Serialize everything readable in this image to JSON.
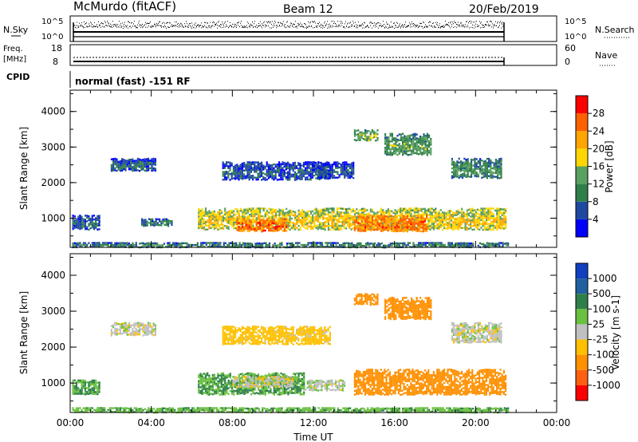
{
  "header": {
    "station": "McMurdo (fitACF)",
    "beam": "Beam 12",
    "date": "20/Feb/2019"
  },
  "strips": {
    "nsky": {
      "label": "N.Sky",
      "ticks": [
        "10^5",
        "10^0"
      ],
      "right_label": "N.Search",
      "right_ticks": [
        "10^5",
        "10^0"
      ]
    },
    "freq": {
      "label_line1": "Freq.",
      "label_line2": "[MHz]",
      "ticks": [
        "18",
        "8"
      ],
      "right_label": "Nave",
      "right_ticks": [
        "60",
        "0"
      ]
    },
    "cpid": {
      "label": "CPID",
      "value": "normal (fast) -151 RF"
    }
  },
  "colors": {
    "power_scale": [
      "#0000ff",
      "#1f48a0",
      "#2f7f4a",
      "#5aa060",
      "#ffd700",
      "#ffa500",
      "#ff6000",
      "#ff0000"
    ],
    "velocity_scale": [
      "#1040c0",
      "#2060a0",
      "#2f7f4a",
      "#6ac040",
      "#c0c0c0",
      "#ffc000",
      "#ff9000",
      "#ff6010",
      "#ff0000"
    ]
  },
  "chart_data": [
    {
      "type": "heatmap",
      "panel": "power",
      "ylabel": "Slant Range [km]",
      "xlabel": "",
      "ylim": [
        180,
        4600
      ],
      "xlim_hours": [
        0,
        24
      ],
      "yticks": [
        "1000",
        "2000",
        "3000",
        "4000"
      ],
      "colorbar": {
        "label": "Power [dB]",
        "ticks": [
          "4",
          "8",
          "12",
          "16",
          "20",
          "24",
          "28"
        ],
        "range": [
          0,
          32
        ]
      },
      "regions": [
        {
          "t0": 0.1,
          "t1": 21.6,
          "r0": 200,
          "r1": 330,
          "level": 0.32
        },
        {
          "t0": 0.1,
          "t1": 1.4,
          "r0": 700,
          "r1": 1100,
          "level": 0.22
        },
        {
          "t0": 3.5,
          "t1": 5.0,
          "r0": 800,
          "r1": 1000,
          "level": 0.28
        },
        {
          "t0": 6.3,
          "t1": 21.5,
          "r0": 700,
          "r1": 1300,
          "level": 0.62
        },
        {
          "t0": 8.2,
          "t1": 10.7,
          "r0": 650,
          "r1": 1000,
          "level": 0.9
        },
        {
          "t0": 14.0,
          "t1": 17.6,
          "r0": 650,
          "r1": 1100,
          "level": 0.85
        },
        {
          "t0": 2.0,
          "t1": 4.2,
          "r0": 2350,
          "r1": 2700,
          "level": 0.22
        },
        {
          "t0": 7.5,
          "t1": 12.8,
          "r0": 2100,
          "r1": 2600,
          "level": 0.2
        },
        {
          "t0": 12.2,
          "t1": 14.0,
          "r0": 2150,
          "r1": 2600,
          "level": 0.18
        },
        {
          "t0": 18.8,
          "t1": 21.3,
          "r0": 2150,
          "r1": 2700,
          "level": 0.35
        },
        {
          "t0": 14.0,
          "t1": 15.2,
          "r0": 3200,
          "r1": 3500,
          "level": 0.48
        },
        {
          "t0": 15.5,
          "t1": 17.8,
          "r0": 2800,
          "r1": 3400,
          "level": 0.4
        }
      ]
    },
    {
      "type": "heatmap",
      "panel": "velocity",
      "ylabel": "Slant Range [km]",
      "xlabel": "Time UT",
      "ylim": [
        180,
        4600
      ],
      "xlim_hours": [
        0,
        24
      ],
      "xticks": [
        "00:00",
        "04:00",
        "08:00",
        "12:00",
        "16:00",
        "20:00",
        "00:00"
      ],
      "yticks": [
        "1000",
        "2000",
        "3000",
        "4000"
      ],
      "colorbar": {
        "label": "Velocity [m s-1]",
        "ticks": [
          "1000",
          "500",
          "100",
          "25",
          "-25",
          "-100",
          "-500",
          "-1000"
        ]
      },
      "regions": [
        {
          "t0": 0.1,
          "t1": 21.6,
          "r0": 200,
          "r1": 330,
          "vel": 80
        },
        {
          "t0": 0.1,
          "t1": 1.4,
          "r0": 700,
          "r1": 1100,
          "vel": 100
        },
        {
          "t0": 6.3,
          "t1": 11.5,
          "r0": 700,
          "r1": 1300,
          "vel": 100
        },
        {
          "t0": 8.0,
          "t1": 11.0,
          "r0": 900,
          "r1": 1200,
          "vel": 0
        },
        {
          "t0": 11.5,
          "t1": 13.5,
          "r0": 800,
          "r1": 1100,
          "vel": 10
        },
        {
          "t0": 14.0,
          "t1": 21.5,
          "r0": 700,
          "r1": 1400,
          "vel": -300
        },
        {
          "t0": 2.0,
          "t1": 4.2,
          "r0": 2350,
          "r1": 2700,
          "vel": 0
        },
        {
          "t0": 7.5,
          "t1": 12.8,
          "r0": 2100,
          "r1": 2600,
          "vel": -60
        },
        {
          "t0": 18.8,
          "t1": 21.3,
          "r0": 2150,
          "r1": 2700,
          "vel": 0
        },
        {
          "t0": 14.0,
          "t1": 15.2,
          "r0": 3200,
          "r1": 3500,
          "vel": -200
        },
        {
          "t0": 15.5,
          "t1": 17.8,
          "r0": 2800,
          "r1": 3400,
          "vel": -150
        }
      ]
    }
  ]
}
